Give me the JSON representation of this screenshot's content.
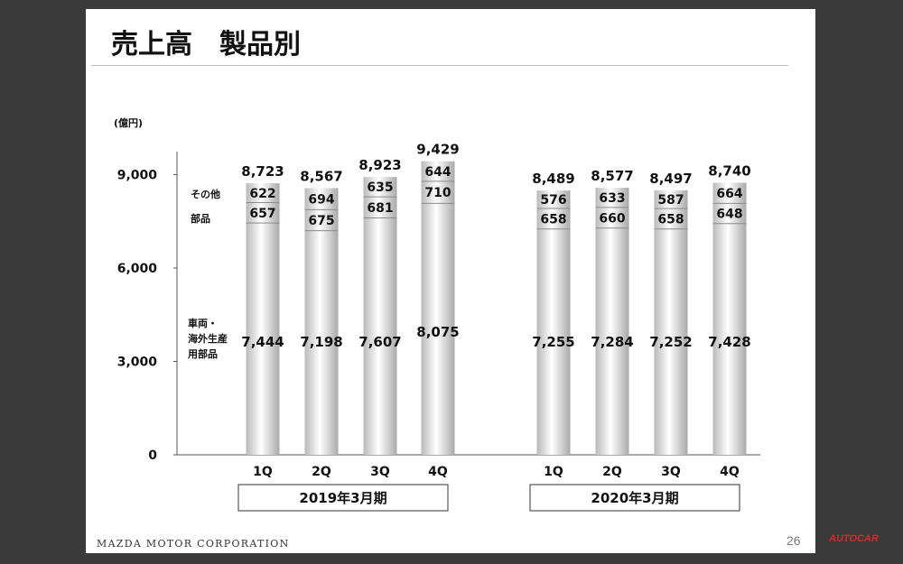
{
  "slide": {
    "title": "売上高　製品別",
    "company": "MAZDA MOTOR CORPORATION",
    "page_number": "26",
    "watermark": "AUTOCAR"
  },
  "chart_data": {
    "type": "bar",
    "stacked": true,
    "unit_label": "(億円)",
    "ylim": [
      0,
      10000
    ],
    "yticks": [
      0,
      3000,
      6000,
      9000
    ],
    "ytick_labels": [
      "0",
      "3,000",
      "6,000",
      "9,000"
    ],
    "categories": [
      "1Q",
      "2Q",
      "3Q",
      "4Q",
      "1Q",
      "2Q",
      "3Q",
      "4Q"
    ],
    "groups": [
      {
        "label": "2019年3月期",
        "categories": [
          "1Q",
          "2Q",
          "3Q",
          "4Q"
        ]
      },
      {
        "label": "2020年3月期",
        "categories": [
          "1Q",
          "2Q",
          "3Q",
          "4Q"
        ]
      }
    ],
    "series": [
      {
        "name": "車両・海外生産用部品",
        "values": [
          7444,
          7198,
          7607,
          8075,
          7255,
          7284,
          7252,
          7428
        ],
        "labels": [
          "7,444",
          "7,198",
          "7,607",
          "8,075",
          "7,255",
          "7,284",
          "7,252",
          "7,428"
        ]
      },
      {
        "name": "部品",
        "values": [
          657,
          675,
          681,
          710,
          658,
          660,
          658,
          648
        ],
        "labels": [
          "657",
          "675",
          "681",
          "710",
          "658",
          "660",
          "658",
          "648"
        ]
      },
      {
        "name": "その他",
        "values": [
          622,
          694,
          635,
          644,
          576,
          633,
          587,
          664
        ],
        "labels": [
          "622",
          "694",
          "635",
          "644",
          "576",
          "633",
          "587",
          "664"
        ]
      }
    ],
    "totals": [
      8723,
      8567,
      8923,
      9429,
      8489,
      8577,
      8497,
      8740
    ],
    "total_labels": [
      "8,723",
      "8,567",
      "8,923",
      "9,429",
      "8,489",
      "8,577",
      "8,497",
      "8,740"
    ],
    "legend_labels": {
      "other": "その他",
      "parts": "部品",
      "vehicle": [
        "車両・",
        "海外生産",
        "用部品"
      ]
    }
  }
}
